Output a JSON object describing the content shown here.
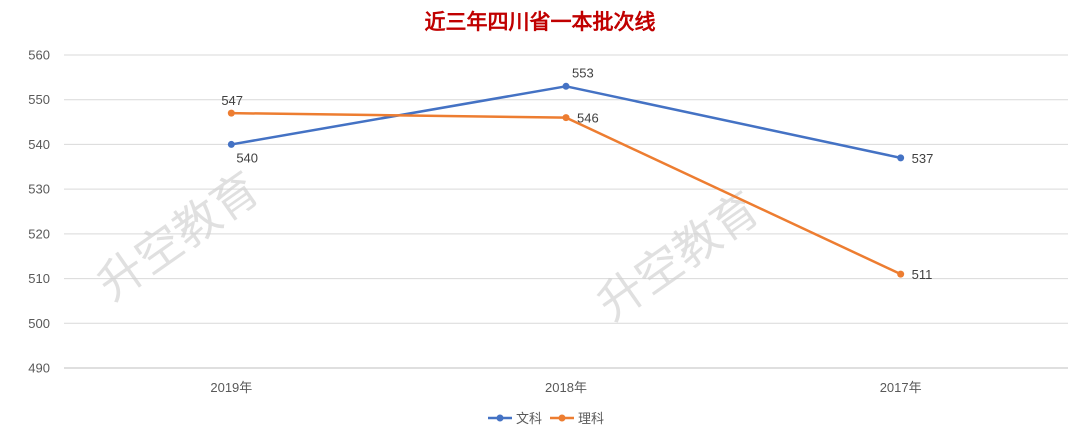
{
  "chart_data": {
    "type": "line",
    "title": "近三年四川省一本批次线",
    "categories": [
      "2019年",
      "2018年",
      "2017年"
    ],
    "series": [
      {
        "name": "文科",
        "values": [
          540,
          553,
          537
        ],
        "color": "#4472c4"
      },
      {
        "name": "理科",
        "values": [
          547,
          546,
          511
        ],
        "color": "#ed7d31"
      }
    ],
    "ylim": [
      490,
      560
    ],
    "yticks": [
      "560",
      "550",
      "540",
      "530",
      "520",
      "510",
      "500",
      "490"
    ],
    "grid": true,
    "legend_position": "bottom",
    "title_color": "#c00000"
  },
  "watermark": "升空教育"
}
